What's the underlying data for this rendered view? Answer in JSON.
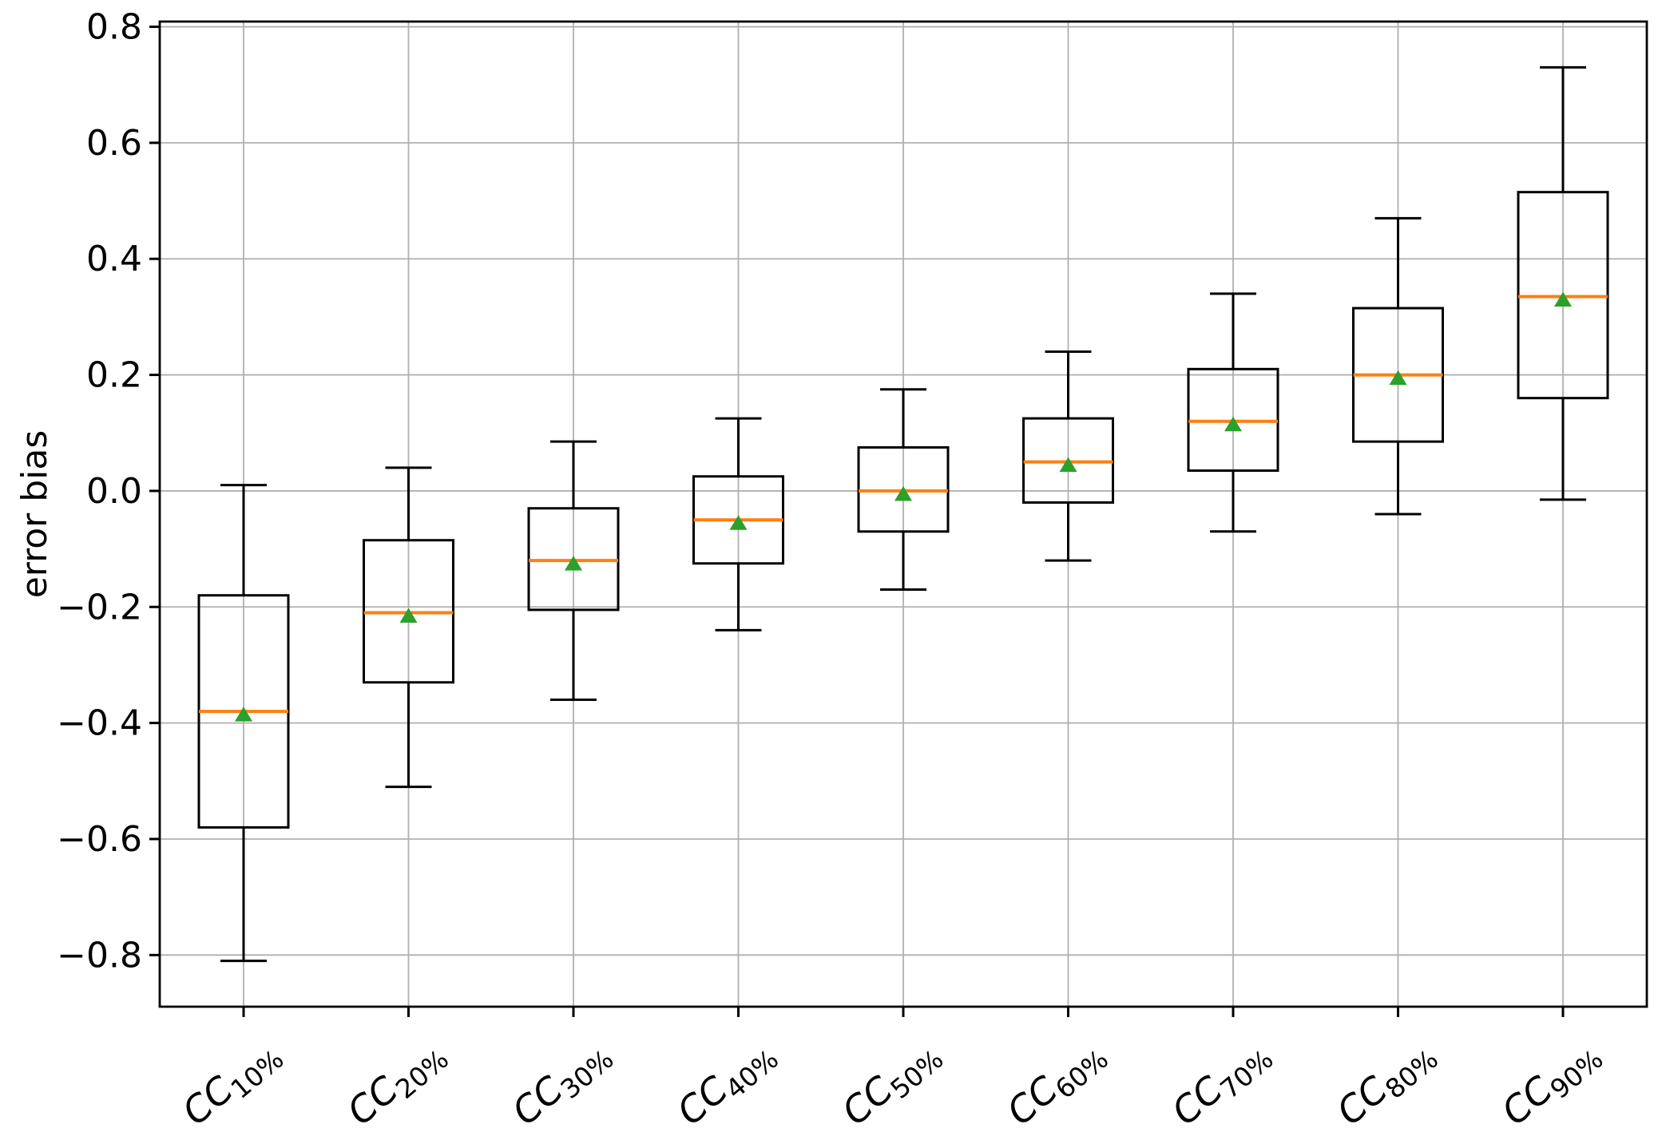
{
  "chart_data": {
    "type": "boxplot",
    "title": "",
    "xlabel": "",
    "ylabel": "error bias",
    "ylim": [
      -0.889,
      0.809
    ],
    "grid": true,
    "legend": null,
    "yticks": [
      {
        "value": 0.8,
        "label": "0.8"
      },
      {
        "value": 0.6,
        "label": "0.6"
      },
      {
        "value": 0.4,
        "label": "0.4"
      },
      {
        "value": 0.2,
        "label": "0.2"
      },
      {
        "value": 0.0,
        "label": "0.0"
      },
      {
        "value": -0.2,
        "label": "−0.2"
      },
      {
        "value": -0.4,
        "label": "−0.4"
      },
      {
        "value": -0.6,
        "label": "−0.6"
      },
      {
        "value": -0.8,
        "label": "−0.8"
      }
    ],
    "boxes": [
      {
        "label_main": "CC",
        "label_sub": "10%",
        "whisker_low": -0.81,
        "q1": -0.58,
        "median": -0.38,
        "q3": -0.18,
        "whisker_high": 0.01,
        "mean": -0.38
      },
      {
        "label_main": "CC",
        "label_sub": "20%",
        "whisker_low": -0.51,
        "q1": -0.33,
        "median": -0.21,
        "q3": -0.085,
        "whisker_high": 0.04,
        "mean": -0.21
      },
      {
        "label_main": "CC",
        "label_sub": "30%",
        "whisker_low": -0.36,
        "q1": -0.205,
        "median": -0.12,
        "q3": -0.03,
        "whisker_high": 0.085,
        "mean": -0.12
      },
      {
        "label_main": "CC",
        "label_sub": "40%",
        "whisker_low": -0.24,
        "q1": -0.125,
        "median": -0.05,
        "q3": 0.025,
        "whisker_high": 0.125,
        "mean": -0.05
      },
      {
        "label_main": "CC",
        "label_sub": "50%",
        "whisker_low": -0.17,
        "q1": -0.07,
        "median": 0.0,
        "q3": 0.075,
        "whisker_high": 0.175,
        "mean": 0.0
      },
      {
        "label_main": "CC",
        "label_sub": "60%",
        "whisker_low": -0.12,
        "q1": -0.02,
        "median": 0.05,
        "q3": 0.125,
        "whisker_high": 0.24,
        "mean": 0.05
      },
      {
        "label_main": "CC",
        "label_sub": "70%",
        "whisker_low": -0.07,
        "q1": 0.035,
        "median": 0.12,
        "q3": 0.21,
        "whisker_high": 0.34,
        "mean": 0.12
      },
      {
        "label_main": "CC",
        "label_sub": "80%",
        "whisker_low": -0.04,
        "q1": 0.085,
        "median": 0.2,
        "q3": 0.315,
        "whisker_high": 0.47,
        "mean": 0.2
      },
      {
        "label_main": "CC",
        "label_sub": "90%",
        "whisker_low": -0.015,
        "q1": 0.16,
        "median": 0.335,
        "q3": 0.515,
        "whisker_high": 0.73,
        "mean": 0.335
      }
    ],
    "colors": {
      "box_line": "#000000",
      "median_line": "#ff7f0e",
      "mean_marker": "#2ca02c",
      "grid_line": "#b0b0b0",
      "axis_line": "#000000",
      "background": "#ffffff"
    }
  }
}
